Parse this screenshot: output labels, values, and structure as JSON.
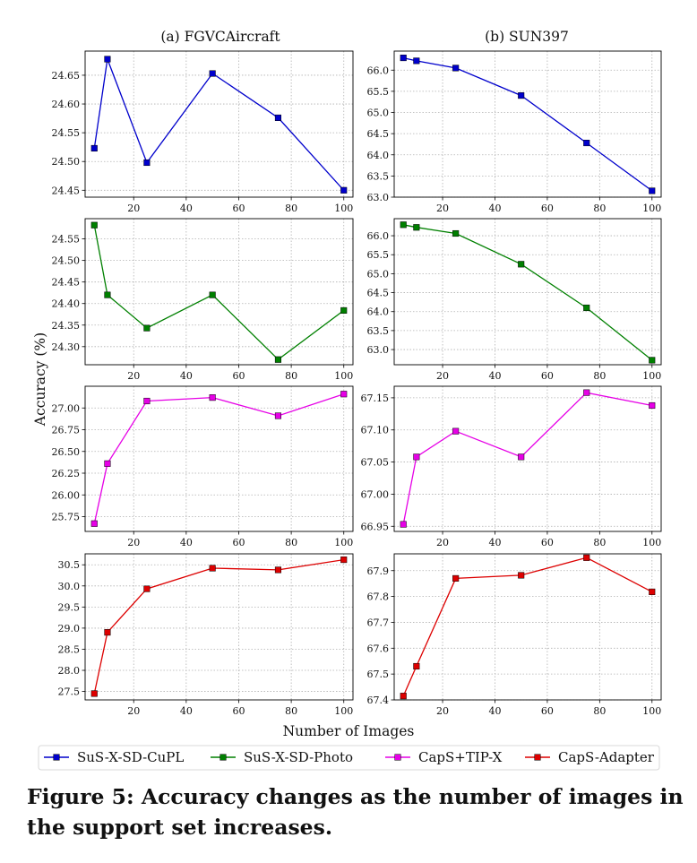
{
  "caption": "Figure 5: Accuracy changes as the number of images in the support set increases.",
  "shared": {
    "xlabel": "Number of Images",
    "ylabel": "Accuracy (%)",
    "x_ticks": [
      "20",
      "40",
      "60",
      "80",
      "100"
    ],
    "column_titles": [
      "(a) FGVCAircraft",
      "(b) SUN397"
    ]
  },
  "legend": {
    "placement": "bottom",
    "entries": [
      {
        "label": "SuS-X-SD-CuPL",
        "color": "#0000cc"
      },
      {
        "label": "SuS-X-SD-Photo",
        "color": "#008000"
      },
      {
        "label": "CapS+TIP-X",
        "color": "#e600e6"
      },
      {
        "label": "CapS-Adapter",
        "color": "#dd0000"
      }
    ]
  },
  "chart_data": [
    {
      "type": "line",
      "title": "(a) FGVCAircraft",
      "series": [
        {
          "name": "SuS-X-SD-CuPL",
          "color": "#0000cc"
        }
      ],
      "x": [
        5,
        10,
        25,
        50,
        75,
        100
      ],
      "values": [
        24.523,
        24.678,
        24.498,
        24.653,
        24.576,
        24.45
      ],
      "xlim": [
        1.5,
        103.5
      ],
      "ylim": [
        24.438,
        24.692
      ],
      "yticks": [
        24.45,
        24.5,
        24.55,
        24.6,
        24.65
      ],
      "ytick_labels": [
        "24.45",
        "24.50",
        "24.55",
        "24.60",
        "24.65"
      ],
      "grid": true
    },
    {
      "type": "line",
      "title": "(b) SUN397",
      "series": [
        {
          "name": "SuS-X-SD-CuPL",
          "color": "#0000cc"
        }
      ],
      "x": [
        5,
        10,
        25,
        50,
        75,
        100
      ],
      "values": [
        66.29,
        66.22,
        66.05,
        65.4,
        64.28,
        63.15
      ],
      "xlim": [
        1.5,
        103.5
      ],
      "ylim": [
        63.0,
        66.45
      ],
      "yticks": [
        63.0,
        63.5,
        64.0,
        64.5,
        65.0,
        65.5,
        66.0
      ],
      "ytick_labels": [
        "63.0",
        "63.5",
        "64.0",
        "64.5",
        "65.0",
        "65.5",
        "66.0"
      ],
      "grid": true
    },
    {
      "type": "line",
      "series": [
        {
          "name": "SuS-X-SD-Photo",
          "color": "#008000"
        }
      ],
      "x": [
        5,
        10,
        25,
        50,
        75,
        100
      ],
      "values": [
        24.582,
        24.42,
        24.343,
        24.42,
        24.27,
        24.384
      ],
      "xlim": [
        1.5,
        103.5
      ],
      "ylim": [
        24.258,
        24.597
      ],
      "yticks": [
        24.3,
        24.35,
        24.4,
        24.45,
        24.5,
        24.55
      ],
      "ytick_labels": [
        "24.30",
        "24.35",
        "24.40",
        "24.45",
        "24.50",
        "24.55"
      ],
      "grid": true
    },
    {
      "type": "line",
      "series": [
        {
          "name": "SuS-X-SD-Photo",
          "color": "#008000"
        }
      ],
      "x": [
        5,
        10,
        25,
        50,
        75,
        100
      ],
      "values": [
        66.29,
        66.22,
        66.06,
        65.25,
        64.1,
        62.72
      ],
      "xlim": [
        1.5,
        103.5
      ],
      "ylim": [
        62.6,
        66.45
      ],
      "yticks": [
        63.0,
        63.5,
        64.0,
        64.5,
        65.0,
        65.5,
        66.0
      ],
      "ytick_labels": [
        "63.0",
        "63.5",
        "64.0",
        "64.5",
        "65.0",
        "65.5",
        "66.0"
      ],
      "grid": true
    },
    {
      "type": "line",
      "series": [
        {
          "name": "CapS+TIP-X",
          "color": "#e600e6"
        }
      ],
      "x": [
        5,
        10,
        25,
        50,
        75,
        100
      ],
      "values": [
        25.67,
        26.36,
        27.08,
        27.12,
        26.91,
        27.16
      ],
      "xlim": [
        1.5,
        103.5
      ],
      "ylim": [
        25.58,
        27.25
      ],
      "yticks": [
        25.75,
        26.0,
        26.25,
        26.5,
        26.75,
        27.0
      ],
      "ytick_labels": [
        "25.75",
        "26.00",
        "26.25",
        "26.50",
        "26.75",
        "27.00"
      ],
      "grid": true
    },
    {
      "type": "line",
      "series": [
        {
          "name": "CapS+TIP-X",
          "color": "#e600e6"
        }
      ],
      "x": [
        5,
        10,
        25,
        50,
        75,
        100
      ],
      "values": [
        66.953,
        67.058,
        67.098,
        67.058,
        67.158,
        67.138
      ],
      "xlim": [
        1.5,
        103.5
      ],
      "ylim": [
        66.942,
        67.168
      ],
      "yticks": [
        66.95,
        67.0,
        67.05,
        67.1,
        67.15
      ],
      "ytick_labels": [
        "66.95",
        "67.00",
        "67.05",
        "67.10",
        "67.15"
      ],
      "grid": true
    },
    {
      "type": "line",
      "series": [
        {
          "name": "CapS-Adapter",
          "color": "#dd0000"
        }
      ],
      "x": [
        5,
        10,
        25,
        50,
        75,
        100
      ],
      "values": [
        27.45,
        28.9,
        29.93,
        30.42,
        30.38,
        30.62
      ],
      "xlim": [
        1.5,
        103.5
      ],
      "ylim": [
        27.3,
        30.76
      ],
      "yticks": [
        27.5,
        28.0,
        28.5,
        29.0,
        29.5,
        30.0,
        30.5
      ],
      "ytick_labels": [
        "27.5",
        "28.0",
        "28.5",
        "29.0",
        "29.5",
        "30.0",
        "30.5"
      ],
      "grid": true
    },
    {
      "type": "line",
      "series": [
        {
          "name": "CapS-Adapter",
          "color": "#dd0000"
        }
      ],
      "x": [
        5,
        10,
        25,
        50,
        75,
        100
      ],
      "values": [
        67.415,
        67.53,
        67.87,
        67.882,
        67.95,
        67.818
      ],
      "xlim": [
        1.5,
        103.5
      ],
      "ylim": [
        67.4,
        67.965
      ],
      "yticks": [
        67.4,
        67.5,
        67.6,
        67.7,
        67.8,
        67.9
      ],
      "ytick_labels": [
        "67.4",
        "67.5",
        "67.6",
        "67.7",
        "67.8",
        "67.9"
      ],
      "grid": true
    }
  ]
}
